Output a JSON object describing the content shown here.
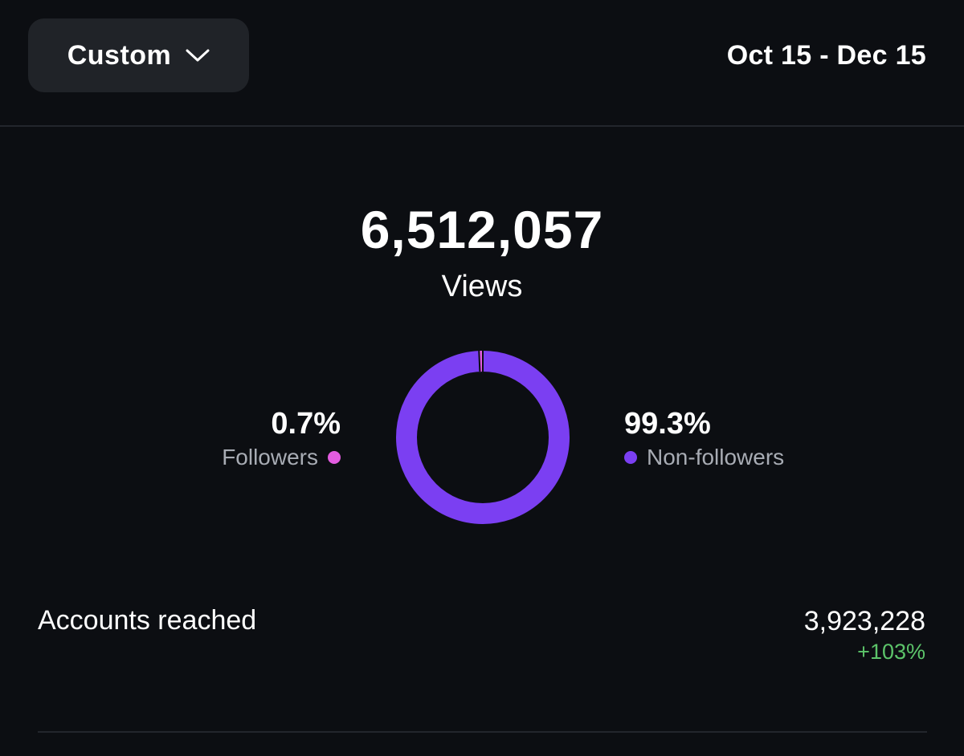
{
  "header": {
    "range_selector_label": "Custom",
    "range_selector_icon": "chevron-down-icon",
    "date_range": "Oct 15 - Dec 15"
  },
  "summary": {
    "total_value": "6,512,057",
    "total_label": "Views"
  },
  "breakdown": {
    "segments": [
      {
        "percent": "0.7%",
        "label": "Followers",
        "fraction": 0.007,
        "color": "#e35ce0"
      },
      {
        "percent": "99.3%",
        "label": "Non-followers",
        "fraction": 0.993,
        "color": "#7b3ff2"
      }
    ]
  },
  "metrics": [
    {
      "label": "Accounts reached",
      "value": "3,923,228",
      "change": "+103%",
      "change_color": "#5cc46a"
    }
  ],
  "colors": {
    "background": "#0c0e12",
    "button_background": "#202328",
    "secondary_text": "#a8acb4"
  }
}
